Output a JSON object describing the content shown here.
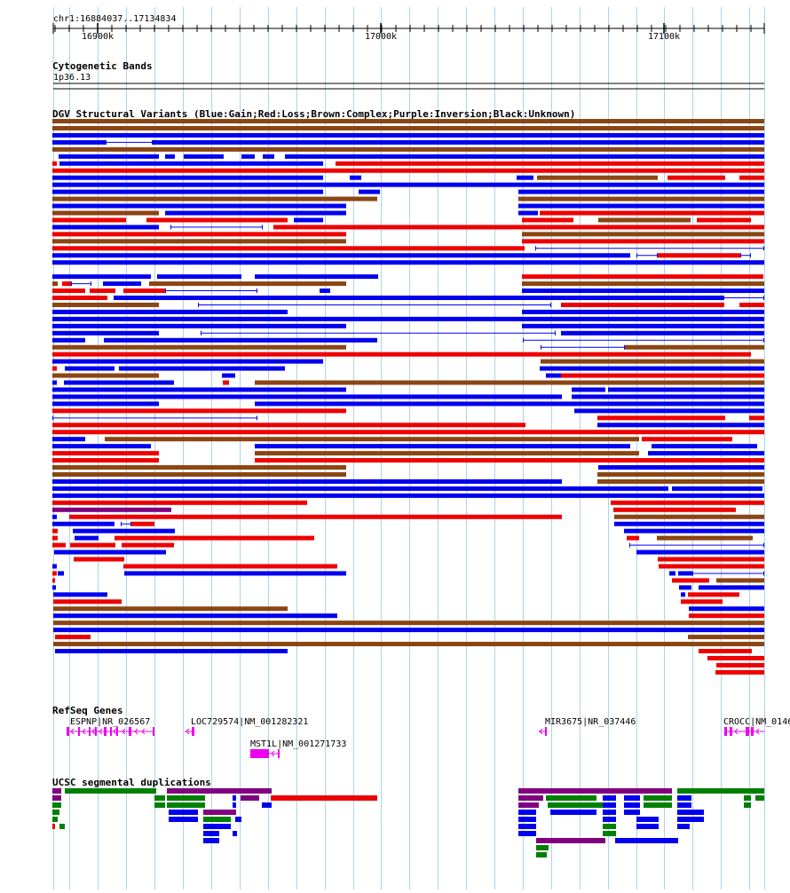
{
  "ruler": {
    "position": "chr1:16884037..17134834",
    "ticks": [
      {
        "pos": 16900000,
        "label": "16900k"
      },
      {
        "pos": 17000000,
        "label": "17000k"
      },
      {
        "pos": 17100000,
        "label": "17100k"
      }
    ]
  },
  "tracks": {
    "cytoband": {
      "title": "Cytogenetic Bands",
      "band_label": "1p36.13"
    },
    "dgv": {
      "title": "DGV Structural Variants (Blue:Gain;Red:Loss;Brown:Complex;Purple:Inversion;Black:Unknown)"
    },
    "refseq": {
      "title": "RefSeq Genes",
      "genes": [
        {
          "label": "ESPNP|NR_026567"
        },
        {
          "label": "LOC729574|NM_001282321"
        },
        {
          "label": "MST1L|NM_001271733"
        },
        {
          "label": "MIR3675|NR_037446"
        },
        {
          "label": "CROCC|NM_0146"
        }
      ]
    },
    "segdups": {
      "title": "UCSC segmental duplications"
    }
  },
  "colors": {
    "gain": "#0000ee",
    "loss": "#ee0000",
    "complex": "#8b4513",
    "inversion": "#800080",
    "gene": "#ee00ee",
    "segdup_green": "#008000",
    "segdup_blue": "#0000ee",
    "segdup_red": "#ee0000",
    "segdup_purple": "#800080",
    "grid": "#aad4ee"
  }
}
